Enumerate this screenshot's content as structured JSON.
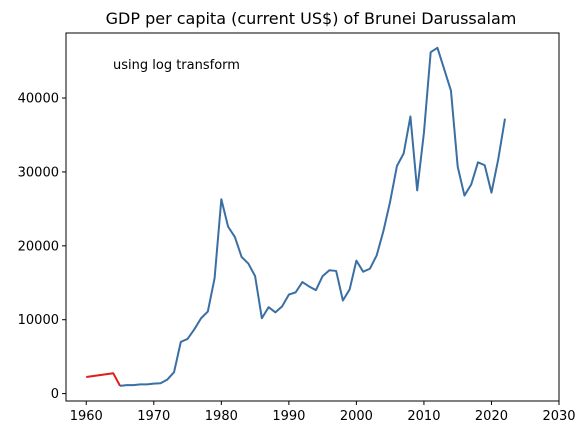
{
  "chart_data": {
    "type": "line",
    "title": "GDP per capita (current US$) of Brunei Darussalam",
    "annotation": "using log transform",
    "xlabel": "",
    "ylabel": "",
    "xlim": [
      1957,
      2030
    ],
    "ylim": [
      -1000,
      48800
    ],
    "xticks": [
      1960,
      1970,
      1980,
      1990,
      2000,
      2010,
      2020,
      2030
    ],
    "yticks": [
      0,
      10000,
      20000,
      30000,
      40000
    ],
    "grid": false,
    "series": [
      {
        "color": "#e41a1c",
        "x": [
          1960,
          1964,
          1965
        ],
        "y": [
          2250,
          2750,
          1050
        ]
      },
      {
        "color": "#3a6fa3",
        "x": [
          1965,
          1966,
          1967,
          1968,
          1969,
          1970,
          1971,
          1972,
          1973,
          1974,
          1975,
          1976,
          1977,
          1978,
          1979,
          1980,
          1981,
          1982,
          1983,
          1984,
          1985,
          1986,
          1987,
          1988,
          1989,
          1990,
          1991,
          1992,
          1993,
          1994,
          1995,
          1996,
          1997,
          1998,
          1999,
          2000,
          2001,
          2002,
          2003,
          2004,
          2005,
          2006,
          2007,
          2008,
          2009,
          2010,
          2011,
          2012,
          2013,
          2014,
          2015,
          2016,
          2017,
          2018,
          2019,
          2020,
          2021,
          2022
        ],
        "y": [
          1050,
          1150,
          1150,
          1250,
          1250,
          1350,
          1400,
          1900,
          2900,
          7000,
          7400,
          8700,
          10200,
          11100,
          15600,
          26300,
          22600,
          21200,
          18500,
          17600,
          15900,
          10200,
          11700,
          11000,
          11800,
          13400,
          13700,
          15100,
          14500,
          14000,
          15900,
          16700,
          16600,
          12600,
          14100,
          18000,
          16500,
          16900,
          18700,
          22000,
          26000,
          30800,
          32500,
          37500,
          27500,
          35300,
          46200,
          46800,
          43900,
          41000,
          30700,
          26800,
          28300,
          31300,
          30900,
          27200,
          31700,
          37200
        ]
      }
    ]
  }
}
